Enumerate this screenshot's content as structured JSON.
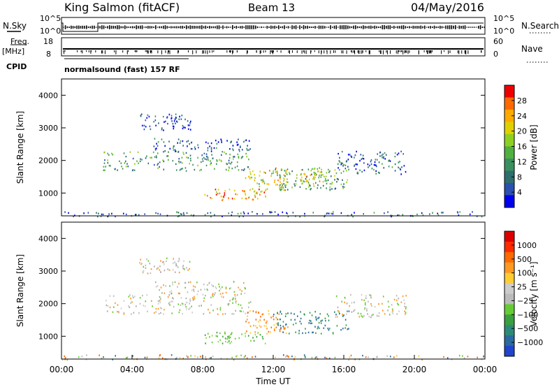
{
  "header": {
    "station": "King Salmon (fitACF)",
    "beam": "Beam 13",
    "date": "04/May/2016"
  },
  "status_panel": {
    "n_sky_label": "N.Sky",
    "n_sky_ticks": [
      "10^5",
      "10^0"
    ],
    "n_search_label": "N.Search",
    "n_search_ticks": [
      "10^5",
      "10^0"
    ],
    "freq_label": "Freq.",
    "freq_unit": "[MHz]",
    "freq_ticks": [
      "18",
      "8"
    ],
    "nave_label": "Nave",
    "nave_ticks": [
      "60",
      "0"
    ],
    "cpid_label": "CPID",
    "cpid_value": "normalsound (fast) 157 RF"
  },
  "chart_data": [
    {
      "type": "heatmap",
      "name": "power",
      "ylabel": "Slant Range [km]",
      "y_ticks": [
        "1000",
        "2000",
        "3000",
        "4000"
      ],
      "ylim": [
        300,
        4500
      ],
      "xlim": [
        0,
        24
      ],
      "colorbar_label": "Power [dB]",
      "colorbar_ticks": [
        "28",
        "24",
        "20",
        "16",
        "12",
        "8",
        "4"
      ],
      "colorbar_colors": [
        "#0000ee",
        "#2a50b0",
        "#2e6e6e",
        "#3c9060",
        "#50b040",
        "#8ed020",
        "#e0d000",
        "#ffaa00",
        "#ff6a00",
        "#ee0000"
      ],
      "echo_regions": [
        {
          "t0": 4.4,
          "t1": 7.3,
          "r0": 2950,
          "r1": 3450,
          "level": 0.15
        },
        {
          "t0": 2.3,
          "t1": 10.7,
          "r0": 1700,
          "r1": 2300,
          "level": 0.35
        },
        {
          "t0": 5.2,
          "t1": 10.7,
          "r0": 2300,
          "r1": 2700,
          "level": 0.2
        },
        {
          "t0": 8.1,
          "t1": 11.6,
          "r0": 800,
          "r1": 1150,
          "level": 0.75
        },
        {
          "t0": 10.4,
          "t1": 12.8,
          "r0": 1100,
          "r1": 1800,
          "level": 0.6
        },
        {
          "t0": 12.0,
          "t1": 16.3,
          "r0": 1100,
          "r1": 1800,
          "level": 0.4
        },
        {
          "t0": 13.5,
          "t1": 15.0,
          "r0": 1300,
          "r1": 1800,
          "level": 0.6
        },
        {
          "t0": 15.5,
          "t1": 19.5,
          "r0": 1600,
          "r1": 2300,
          "level": 0.2
        },
        {
          "t0": 0.0,
          "t1": 24.0,
          "r0": 300,
          "r1": 450,
          "level": 0.2
        }
      ]
    },
    {
      "type": "heatmap",
      "name": "velocity",
      "ylabel": "Slant Range [km]",
      "xlabel": "Time UT",
      "x_ticks": [
        "00:00",
        "04:00",
        "08:00",
        "12:00",
        "16:00",
        "20:00",
        "00:00"
      ],
      "y_ticks": [
        "1000",
        "2000",
        "3000",
        "4000"
      ],
      "ylim": [
        300,
        4500
      ],
      "xlim": [
        0,
        24
      ],
      "colorbar_label": "Velocity [m s⁻¹]",
      "colorbar_ticks": [
        "1000",
        "500",
        "100",
        "25",
        "−25",
        "−100",
        "−500",
        "−1000"
      ],
      "colorbar_colors": [
        "#2244cc",
        "#2a6aa0",
        "#2d8a78",
        "#3aa040",
        "#66cc33",
        "#bbbbbb",
        "#cccccc",
        "#ffcc33",
        "#ff9922",
        "#ff6a00",
        "#ff2a00",
        "#dd0000"
      ],
      "echo_regions": [
        {
          "t0": 4.4,
          "t1": 7.3,
          "r0": 2950,
          "r1": 3450,
          "kind": "gray"
        },
        {
          "t0": 2.3,
          "t1": 10.7,
          "r0": 1700,
          "r1": 2300,
          "kind": "gray"
        },
        {
          "t0": 5.2,
          "t1": 10.7,
          "r0": 2300,
          "r1": 2700,
          "kind": "gray"
        },
        {
          "t0": 8.1,
          "t1": 11.6,
          "r0": 800,
          "r1": 1150,
          "kind": "green"
        },
        {
          "t0": 10.4,
          "t1": 12.8,
          "r0": 1100,
          "r1": 1800,
          "kind": "orange"
        },
        {
          "t0": 12.0,
          "t1": 16.3,
          "r0": 1100,
          "r1": 1800,
          "kind": "teal"
        },
        {
          "t0": 15.5,
          "t1": 19.5,
          "r0": 1600,
          "r1": 2300,
          "kind": "gray"
        },
        {
          "t0": 0.0,
          "t1": 24.0,
          "r0": 300,
          "r1": 450,
          "kind": "mixed"
        }
      ]
    }
  ]
}
